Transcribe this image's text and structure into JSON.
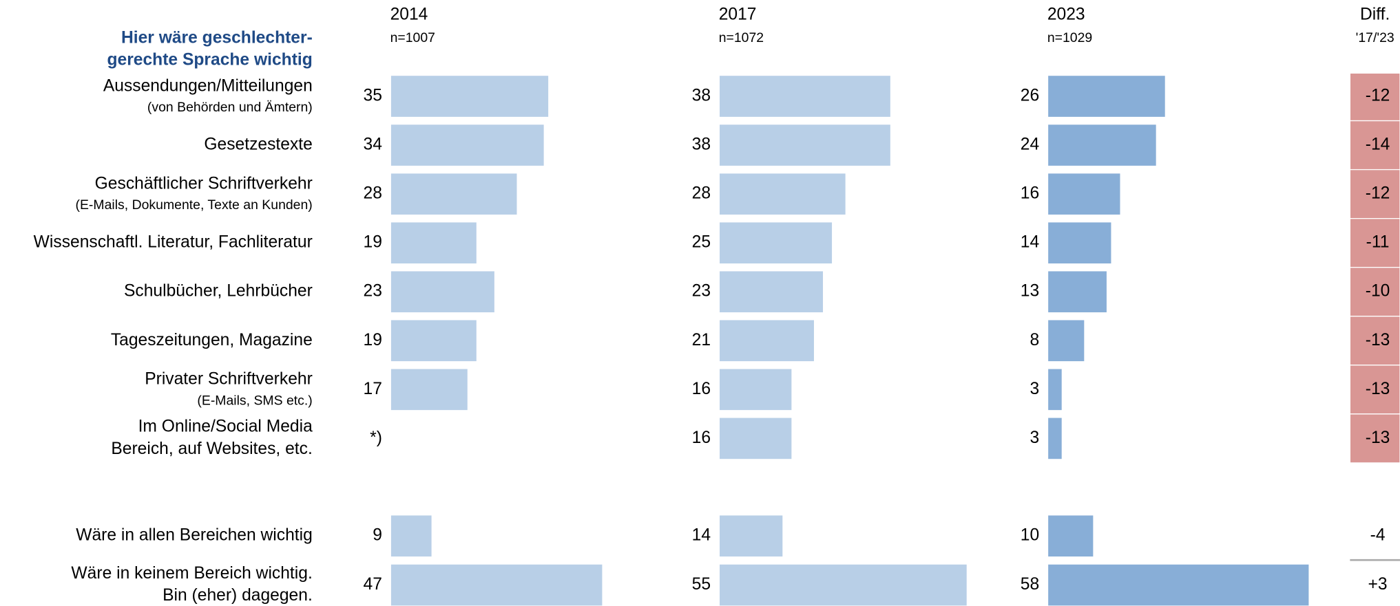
{
  "chart_data": {
    "type": "bar",
    "title": [
      "Hier wäre geschlechter-",
      "gerechte Sprache wichtig"
    ],
    "categories": [
      [
        "Aussendungen/Mitteilungen"
      ],
      [
        "Gesetzestexte"
      ],
      [
        "Geschäftlicher Schriftverkehr"
      ],
      [
        "Wissenschaftl. Literatur, Fachliteratur"
      ],
      [
        "Schulbücher, Lehrbücher"
      ],
      [
        "Tageszeitungen, Magazine"
      ],
      [
        "Privater Schriftverkehr"
      ],
      [
        "Im Online/Social Media",
        "Bereich, auf Websites, etc."
      ],
      [
        "Wäre in allen Bereichen wichtig"
      ],
      [
        "Wäre in keinem Bereich wichtig.",
        "Bin (eher) dagegen."
      ]
    ],
    "category_notes": [
      "(von Behörden und Ämtern)",
      null,
      "(E-Mails, Dokumente, Texte an Kunden)",
      null,
      null,
      null,
      "(E-Mails, SMS etc.)",
      null,
      null,
      null
    ],
    "series": [
      {
        "name": "2014",
        "subtitle": "n=1007",
        "color": "#b8cfe7",
        "values": [
          35,
          34,
          28,
          19,
          23,
          19,
          17,
          null,
          9,
          47
        ],
        "value_labels": [
          null,
          null,
          null,
          null,
          null,
          null,
          null,
          "*)",
          null,
          null
        ]
      },
      {
        "name": "2017",
        "subtitle": "n=1072",
        "color": "#b8cfe7",
        "values": [
          38,
          38,
          28,
          25,
          23,
          21,
          16,
          16,
          14,
          55
        ]
      },
      {
        "name": "2023",
        "subtitle": "n=1029",
        "color": "#88aed7",
        "values": [
          26,
          24,
          16,
          14,
          13,
          8,
          3,
          3,
          10,
          58
        ]
      }
    ],
    "diff": {
      "title": "Diff.",
      "subtitle": "'17/'23",
      "values": [
        -12,
        -14,
        -12,
        -11,
        -10,
        -13,
        -13,
        -13,
        -4,
        3
      ],
      "value_labels": [
        null,
        null,
        null,
        null,
        null,
        null,
        null,
        null,
        null,
        "+3"
      ],
      "colors": [
        "#d99694",
        "#d99694",
        "#d99694",
        "#d99694",
        "#d99694",
        "#d99694",
        "#d99694",
        "#d99694",
        null,
        null
      ]
    }
  }
}
